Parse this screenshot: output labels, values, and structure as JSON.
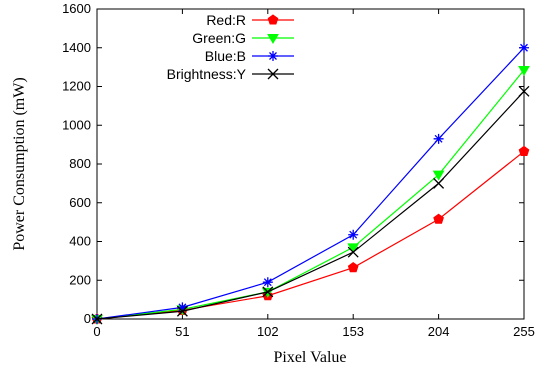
{
  "chart_data": {
    "type": "line",
    "title": "",
    "xlabel": "Pixel Value",
    "ylabel": "Power Consumption (mW)",
    "x": [
      0,
      51,
      102,
      153,
      204,
      255
    ],
    "xlim": [
      0,
      255
    ],
    "ylim": [
      0,
      1600
    ],
    "xticks": [
      "0",
      "51",
      "102",
      "153",
      "204",
      "255"
    ],
    "yticks": [
      "0",
      "200",
      "400",
      "600",
      "800",
      "1000",
      "1200",
      "1400",
      "1600"
    ],
    "grid": false,
    "legend_position": "top-left",
    "series": [
      {
        "name": "Red:R",
        "color": "#ff0000",
        "marker": "pentagon",
        "values": [
          0,
          45,
          120,
          265,
          515,
          865
        ]
      },
      {
        "name": "Green:G",
        "color": "#00ff00",
        "marker": "triangle-down",
        "values": [
          0,
          50,
          140,
          370,
          745,
          1285
        ]
      },
      {
        "name": "Blue:B",
        "color": "#0000ff",
        "marker": "asterisk",
        "values": [
          0,
          60,
          190,
          435,
          930,
          1400
        ]
      },
      {
        "name": "Brightness:Y",
        "color": "#000000",
        "marker": "x",
        "values": [
          0,
          40,
          140,
          345,
          700,
          1175
        ]
      }
    ]
  }
}
